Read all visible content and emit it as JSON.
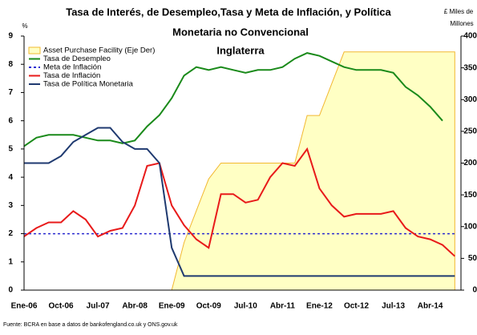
{
  "chart_data": {
    "type": "line",
    "title": [
      "Tasa de Interés, de Desempleo,Tasa y Meta de Inflación, y Política",
      "Monetaria no Convencional",
      "Inglaterra"
    ],
    "ylabel": "%",
    "y2label": [
      "£ Miles de",
      "Millones"
    ],
    "source": "Fuente: BCRA en base a datos de bankofengland.co.uk y ONS.gov.uk",
    "categories": [
      "Ene-06",
      null,
      null,
      "Oct-06",
      null,
      null,
      "Jul-07",
      null,
      null,
      "Abr-08",
      null,
      null,
      "Ene-09",
      null,
      null,
      "Oct-09",
      null,
      null,
      "Jul-10",
      null,
      null,
      "Abr-11",
      null,
      null,
      "Ene-12",
      null,
      null,
      "Oct-12",
      null,
      null,
      "Jul-13",
      null,
      null,
      "Abr-14",
      null,
      null
    ],
    "series": [
      {
        "name": "Asset Purchase Facility (Eje Der)",
        "color": "#f2b830",
        "fill": "#ffffc4",
        "axis": "y2",
        "style": "area",
        "values": [
          0,
          0,
          0,
          0,
          0,
          0,
          0,
          0,
          0,
          0,
          0,
          0,
          0,
          75,
          125,
          175,
          200,
          200,
          200,
          200,
          200,
          200,
          200,
          275,
          275,
          325,
          375,
          375,
          375,
          375,
          375,
          375,
          375,
          375,
          375,
          375
        ]
      },
      {
        "name": "Tasa de Desempleo",
        "color": "#1a8a1a",
        "style": "solid",
        "values": [
          5.1,
          5.4,
          5.5,
          5.5,
          5.5,
          5.4,
          5.3,
          5.3,
          5.2,
          5.3,
          5.8,
          6.2,
          6.8,
          7.6,
          7.9,
          7.8,
          7.9,
          7.8,
          7.7,
          7.8,
          7.8,
          7.9,
          8.2,
          8.4,
          8.3,
          8.1,
          7.9,
          7.8,
          7.8,
          7.8,
          7.7,
          7.2,
          6.9,
          6.5,
          6.0,
          null
        ]
      },
      {
        "name": "Meta de Inflación",
        "color": "#2a2ad0",
        "style": "dotted",
        "values": [
          2,
          2,
          2,
          2,
          2,
          2,
          2,
          2,
          2,
          2,
          2,
          2,
          2,
          2,
          2,
          2,
          2,
          2,
          2,
          2,
          2,
          2,
          2,
          2,
          2,
          2,
          2,
          2,
          2,
          2,
          2,
          2,
          2,
          2,
          2,
          2
        ]
      },
      {
        "name": "Tasa de Inflación",
        "color": "#e81a1a",
        "style": "solid",
        "values": [
          1.9,
          2.2,
          2.4,
          2.4,
          2.8,
          2.5,
          1.9,
          2.1,
          2.2,
          3.0,
          4.4,
          4.5,
          3.0,
          2.3,
          1.8,
          1.5,
          3.4,
          3.4,
          3.1,
          3.2,
          4.0,
          4.5,
          4.4,
          5.0,
          3.6,
          3.0,
          2.6,
          2.7,
          2.7,
          2.7,
          2.8,
          2.2,
          1.9,
          1.8,
          1.6,
          1.2
        ]
      },
      {
        "name": "Tasa de Política Monetaria",
        "color": "#1f3a70",
        "style": "solid",
        "values": [
          4.5,
          4.5,
          4.5,
          4.75,
          5.25,
          5.5,
          5.75,
          5.75,
          5.25,
          5.0,
          5.0,
          4.5,
          1.5,
          0.5,
          0.5,
          0.5,
          0.5,
          0.5,
          0.5,
          0.5,
          0.5,
          0.5,
          0.5,
          0.5,
          0.5,
          0.5,
          0.5,
          0.5,
          0.5,
          0.5,
          0.5,
          0.5,
          0.5,
          0.5,
          0.5,
          0.5
        ]
      }
    ],
    "ylim": [
      0,
      9
    ],
    "yticks": [
      0,
      1,
      2,
      3,
      4,
      5,
      6,
      7,
      8,
      9
    ],
    "y2lim": [
      0,
      400
    ],
    "y2ticks": [
      0,
      50,
      100,
      150,
      200,
      250,
      300,
      350,
      400
    ],
    "legend": "upper left"
  }
}
